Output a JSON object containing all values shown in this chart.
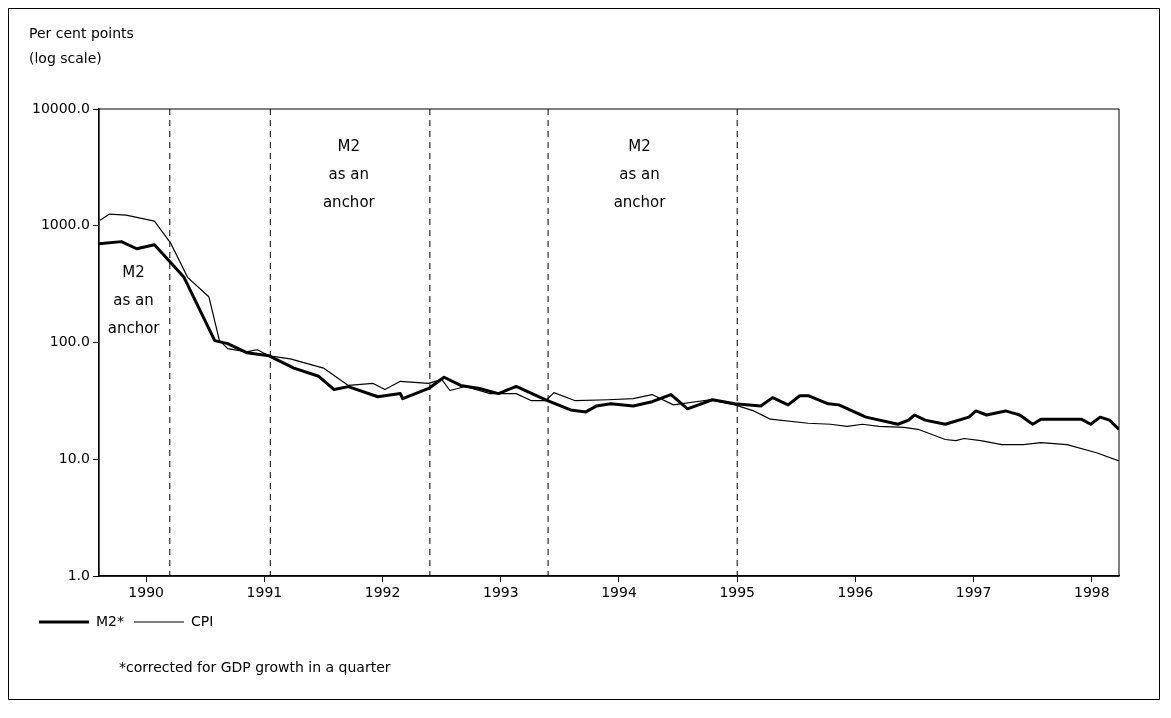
{
  "chart_data": {
    "type": "line",
    "ylabel": "Per cent points\n(log scale)",
    "log": "y",
    "ylim": [
      1,
      10000
    ],
    "yticks": [
      {
        "value": 1,
        "label": "1.0"
      },
      {
        "value": 10,
        "label": "10.0"
      },
      {
        "value": 100,
        "label": "100.0"
      },
      {
        "value": 1000,
        "label": "1000.0"
      },
      {
        "value": 10000,
        "label": "10000.0"
      }
    ],
    "xlim": [
      1990.1,
      1998.73
    ],
    "xticks": [
      {
        "value": 1990.5,
        "label": "1990"
      },
      {
        "value": 1991.5,
        "label": "1991"
      },
      {
        "value": 1992.5,
        "label": "1992"
      },
      {
        "value": 1993.5,
        "label": "1993"
      },
      {
        "value": 1994.5,
        "label": "1994"
      },
      {
        "value": 1995.5,
        "label": "1995"
      },
      {
        "value": 1996.5,
        "label": "1996"
      },
      {
        "value": 1997.5,
        "label": "1997"
      },
      {
        "value": 1998.5,
        "label": "1998"
      }
    ],
    "grid": false,
    "legend": "bottom left",
    "marker": "none",
    "line_style": "solid",
    "series": [
      {
        "name": "M2*",
        "color": "#000000",
        "x": [
          1990.1,
          1990.29,
          1990.42,
          1990.57,
          1990.82,
          1991.08,
          1991.19,
          1991.35,
          1991.54,
          1991.75,
          1991.96,
          1992.09,
          1992.21,
          1992.46,
          1992.65,
          1992.67,
          1992.89,
          1993.02,
          1993.16,
          1993.32,
          1993.48,
          1993.63,
          1993.88,
          1994.09,
          1994.22,
          1994.31,
          1994.43,
          1994.62,
          1994.78,
          1994.94,
          1995.08,
          1995.29,
          1995.48,
          1995.7,
          1995.8,
          1995.93,
          1996.03,
          1996.1,
          1996.27,
          1996.36,
          1996.59,
          1996.86,
          1996.95,
          1997.0,
          1997.09,
          1997.26,
          1997.46,
          1997.52,
          1997.61,
          1997.77,
          1997.89,
          1998.0,
          1998.07,
          1998.41,
          1998.49,
          1998.57,
          1998.65,
          1998.73
        ],
        "values": [
          703,
          732,
          636,
          689,
          362,
          104,
          98,
          82,
          77,
          60.5,
          51.5,
          39.6,
          42,
          34.4,
          36.6,
          33.1,
          40.5,
          50.5,
          43,
          40.5,
          36.6,
          42.1,
          32.4,
          26.5,
          25.5,
          28.7,
          29.9,
          28.7,
          31.2,
          35.9,
          27.1,
          32.4,
          29.9,
          28.7,
          33.8,
          29.3,
          35.1,
          35.1,
          29.9,
          29.3,
          23,
          20,
          21.7,
          24,
          21.7,
          20,
          23,
          26,
          24,
          26,
          24,
          20,
          22.1,
          22.1,
          20,
          23,
          21.7,
          18.1
        ]
      },
      {
        "name": "CPI",
        "color": "#000000",
        "x": [
          1990.11,
          1990.19,
          1990.33,
          1990.57,
          1990.71,
          1990.85,
          1991.03,
          1991.12,
          1991.19,
          1991.35,
          1991.44,
          1991.54,
          1991.72,
          1992.0,
          1992.21,
          1992.42,
          1992.52,
          1992.65,
          1992.89,
          1993.0,
          1993.07,
          1993.2,
          1993.41,
          1993.63,
          1993.76,
          1993.88,
          1993.95,
          1994.13,
          1994.41,
          1994.62,
          1994.78,
          1994.96,
          1995.27,
          1995.48,
          1995.64,
          1995.78,
          1996.1,
          1996.29,
          1996.43,
          1996.56,
          1996.7,
          1996.91,
          1997.03,
          1997.26,
          1997.35,
          1997.42,
          1997.56,
          1997.74,
          1997.92,
          1998.07,
          1998.29,
          1998.54,
          1998.73
        ],
        "values": [
          1117,
          1260,
          1236,
          1095,
          703,
          362,
          247,
          104,
          88.7,
          83.4,
          86.9,
          77,
          72.5,
          60.5,
          43,
          44.7,
          39.6,
          46.6,
          44.7,
          48.5,
          38.9,
          42.1,
          36.6,
          36.6,
          31.8,
          31.8,
          37.3,
          31.8,
          32.4,
          33.1,
          35.9,
          29.3,
          32.4,
          29.3,
          26,
          22.1,
          20.4,
          20,
          19.2,
          20,
          19.2,
          18.8,
          18.1,
          14.8,
          14.5,
          15.1,
          14.5,
          13.4,
          13.4,
          13.9,
          13.4,
          11.4,
          9.7
        ]
      }
    ],
    "ref_lines": [
      {
        "axis": "x",
        "value": 1990.7,
        "line_style": "dashed"
      },
      {
        "axis": "x",
        "value": 1991.55,
        "line_style": "dashed"
      },
      {
        "axis": "x",
        "value": 1992.9,
        "line_style": "dashed"
      },
      {
        "axis": "x",
        "value": 1993.9,
        "line_style": "dashed"
      },
      {
        "axis": "x",
        "value": 1995.5,
        "line_style": "dashed"
      }
    ],
    "annotations": [
      "M2\nas an\nanchor",
      "M2\nas an\nanchor",
      "M2\nas an\nanchor",
      "*corrected for GDP growth in a quarter"
    ]
  }
}
